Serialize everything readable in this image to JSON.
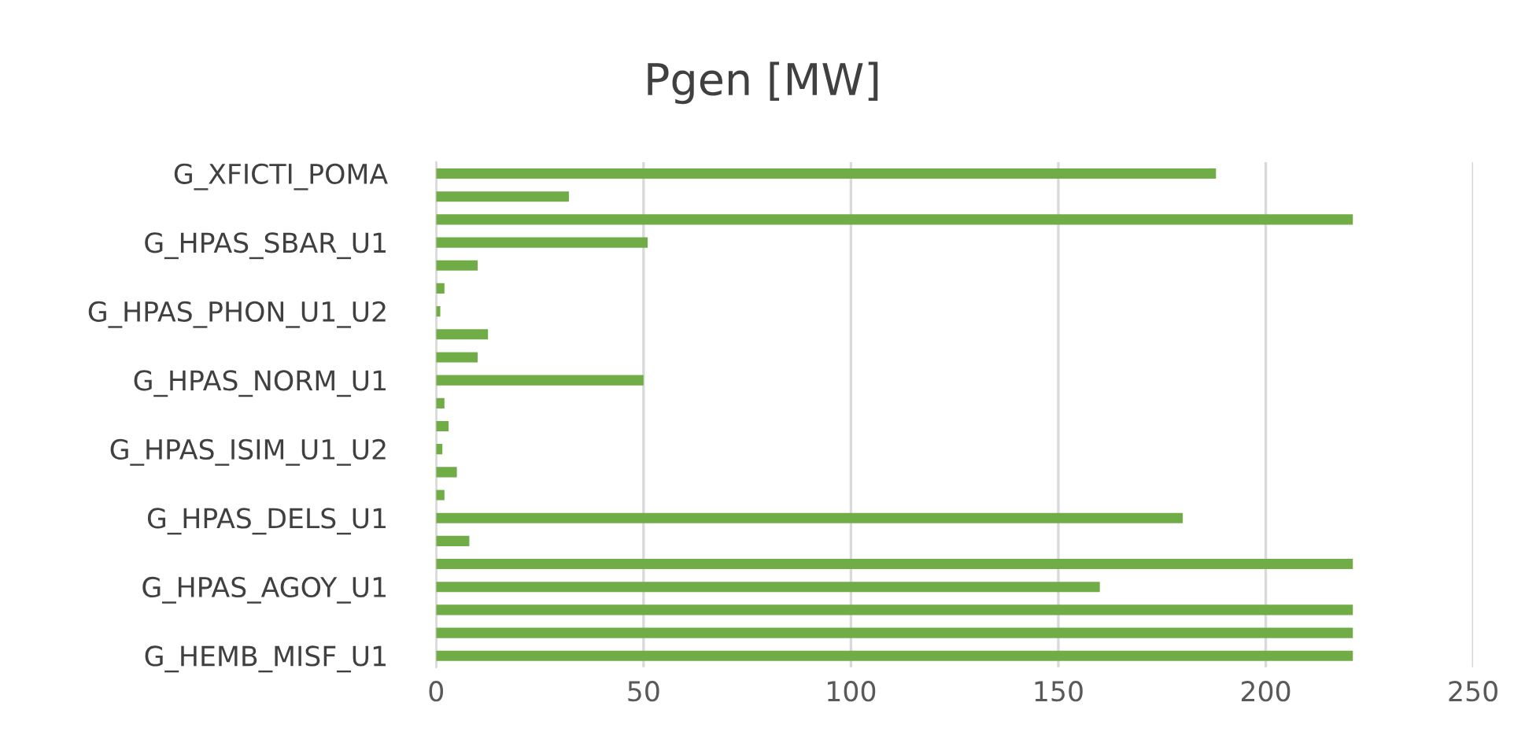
{
  "chart_data": {
    "type": "bar",
    "orientation": "horizontal",
    "title": "Pgen [MW]",
    "categories": [
      "G_XFICTI_POMA",
      null,
      null,
      "G_HPAS_SBAR_U1",
      null,
      null,
      "G_HPAS_PHON_U1_U2",
      null,
      null,
      "G_HPAS_NORM_U1",
      null,
      null,
      "G_HPAS_ISIM_U1_U2",
      null,
      null,
      "G_HPAS_DELS_U1",
      null,
      null,
      "G_HPAS_AGOY_U1",
      null,
      null,
      "G_HEMB_MISF_U1"
    ],
    "values": [
      188,
      32,
      221,
      51,
      10,
      2,
      1,
      12.5,
      10,
      50,
      2,
      3,
      1.5,
      5,
      2,
      180,
      8,
      221,
      160,
      221,
      221,
      221
    ],
    "color": "#70ad47",
    "xlim": [
      0,
      250
    ],
    "xticks": [
      0,
      50,
      100,
      150,
      200,
      250
    ],
    "grid": "x"
  }
}
